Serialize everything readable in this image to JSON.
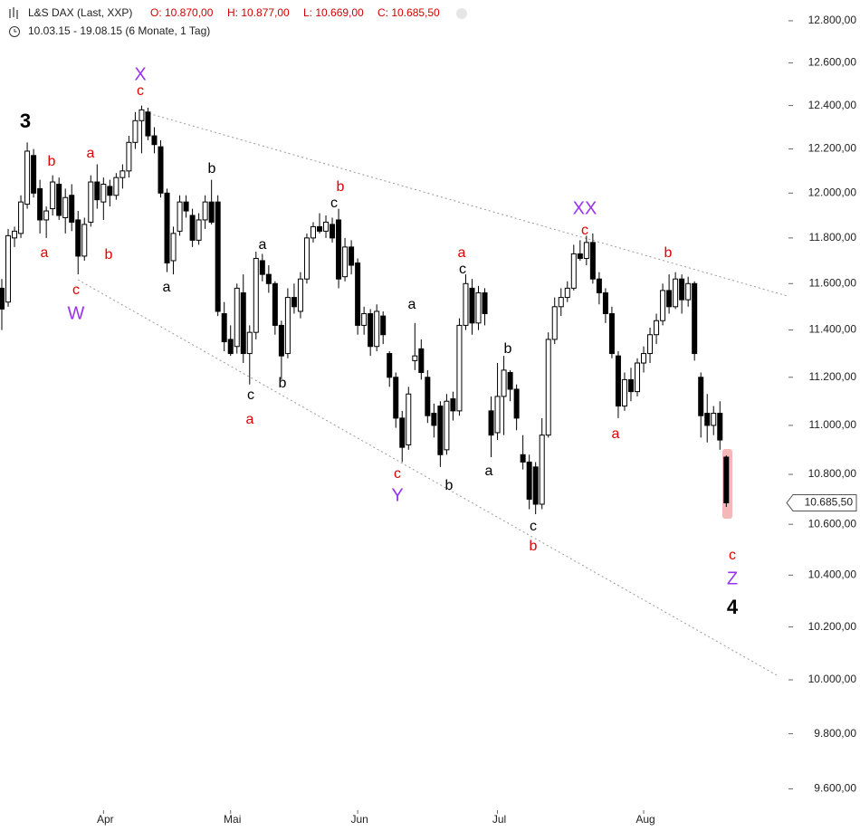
{
  "header": {
    "title": "L&S DAX (Last, XXP)",
    "ohlc": [
      "O: 10.870,00",
      "H: 10.877,00",
      "L: 10.669,00",
      "C: 10.685,50"
    ],
    "ohlc_color": "#d40000",
    "subtitle": "10.03.15 - 19.08.15 (6 Monate, 1 Tag)"
  },
  "chart_data": {
    "type": "candlestick",
    "log_scale": true,
    "ylim": [
      9530,
      12900
    ],
    "yticks": [
      {
        "value": 9600,
        "label": "9.600,00"
      },
      {
        "value": 9800,
        "label": "9.800,00"
      },
      {
        "value": 10000,
        "label": "10.000,00"
      },
      {
        "value": 10200,
        "label": "10.200,00"
      },
      {
        "value": 10400,
        "label": "10.400,00"
      },
      {
        "value": 10600,
        "label": "10.600,00"
      },
      {
        "value": 10800,
        "label": "10.800,00"
      },
      {
        "value": 11000,
        "label": "11.000,00"
      },
      {
        "value": 11200,
        "label": "11.200,00"
      },
      {
        "value": 11400,
        "label": "11.400,00"
      },
      {
        "value": 11600,
        "label": "11.600,00"
      },
      {
        "value": 11800,
        "label": "11.800,00"
      },
      {
        "value": 12000,
        "label": "12.000,00"
      },
      {
        "value": 12200,
        "label": "12.200,00"
      },
      {
        "value": 12400,
        "label": "12.400,00"
      },
      {
        "value": 12600,
        "label": "12.600,00"
      },
      {
        "value": 12800,
        "label": "12.800,00"
      }
    ],
    "categories": [
      null,
      null,
      null,
      null,
      null,
      null,
      null,
      null,
      null,
      null,
      null,
      null,
      null,
      null,
      null,
      null,
      "Apr",
      null,
      null,
      null,
      null,
      null,
      null,
      null,
      null,
      null,
      null,
      null,
      null,
      null,
      null,
      null,
      null,
      null,
      null,
      null,
      "Mai",
      null,
      null,
      null,
      null,
      null,
      null,
      null,
      null,
      null,
      null,
      null,
      null,
      null,
      null,
      null,
      null,
      null,
      null,
      null,
      "Jun",
      null,
      null,
      null,
      null,
      null,
      null,
      null,
      null,
      null,
      null,
      null,
      null,
      null,
      null,
      null,
      null,
      null,
      null,
      null,
      null,
      null,
      "Jul",
      null,
      null,
      null,
      null,
      null,
      null,
      null,
      null,
      null,
      null,
      null,
      null,
      null,
      null,
      null,
      null,
      null,
      null,
      null,
      null,
      null,
      null,
      "Aug",
      null,
      null,
      null,
      null,
      null,
      null,
      null,
      null,
      null,
      null,
      null,
      null,
      null
    ],
    "open": [
      11580,
      11520,
      11800,
      11820,
      11950,
      12170,
      12020,
      11880,
      11930,
      12040,
      11890,
      11990,
      11880,
      11720,
      11870,
      12050,
      11960,
      12030,
      11990,
      12070,
      12100,
      12230,
      12330,
      12370,
      12260,
      12210,
      12000,
      11700,
      11830,
      11960,
      11900,
      11790,
      11880,
      11960,
      11960,
      11470,
      11360,
      11330,
      11560,
      11300,
      11390,
      11700,
      11640,
      11600,
      11420,
      11300,
      11540,
      11480,
      11620,
      11800,
      11850,
      11830,
      11860,
      11880,
      11630,
      11760,
      11690,
      11420,
      11470,
      11330,
      11460,
      11300,
      11200,
      11030,
      10920,
      11270,
      11320,
      11200,
      11050,
      11080,
      10900,
      11110,
      11060,
      11420,
      11580,
      11430,
      11560,
      11060,
      10970,
      11120,
      11220,
      11150,
      10880,
      10850,
      10830,
      10680,
      10960,
      11360,
      11500,
      11540,
      11580,
      11730,
      11710,
      11780,
      11620,
      11560,
      11470,
      11290,
      11080,
      11190,
      11140,
      11260,
      11300,
      11380,
      11440,
      11570,
      11500,
      11620,
      11530,
      11600,
      11200,
      11050,
      11000,
      11050,
      10870
    ],
    "high": [
      11620,
      11840,
      11850,
      11990,
      12230,
      12200,
      12060,
      11940,
      12080,
      12070,
      12020,
      12040,
      11920,
      11890,
      12080,
      12130,
      12070,
      12060,
      12090,
      12130,
      12260,
      12370,
      12400,
      12390,
      12300,
      12240,
      12020,
      11850,
      11990,
      11990,
      11930,
      11910,
      11990,
      12060,
      11990,
      11520,
      11420,
      11600,
      11640,
      11420,
      11740,
      11730,
      11680,
      11610,
      11440,
      11580,
      11600,
      11650,
      11820,
      11870,
      11910,
      11900,
      11890,
      11930,
      11800,
      11790,
      11710,
      11500,
      11490,
      11510,
      11480,
      11310,
      11220,
      11060,
      11160,
      11430,
      11360,
      11230,
      11090,
      11100,
      11130,
      11140,
      11450,
      11640,
      11620,
      11590,
      11580,
      11120,
      11260,
      11290,
      11230,
      11170,
      10960,
      10880,
      10850,
      11030,
      11390,
      11540,
      11580,
      11610,
      11770,
      11790,
      11810,
      11820,
      11650,
      11580,
      11500,
      11310,
      11220,
      11240,
      11280,
      11330,
      11410,
      11470,
      11600,
      11640,
      11650,
      11640,
      11630,
      11610,
      11220,
      11130,
      11080,
      11100,
      10877
    ],
    "low": [
      11400,
      11500,
      11760,
      11800,
      11930,
      11980,
      11820,
      11800,
      11900,
      11880,
      11820,
      11830,
      11640,
      11700,
      11850,
      11930,
      11880,
      11940,
      11970,
      12020,
      12070,
      12200,
      12180,
      12240,
      12180,
      11980,
      11650,
      11640,
      11810,
      11890,
      11760,
      11770,
      11840,
      11860,
      11460,
      11310,
      11290,
      11300,
      11260,
      11170,
      11360,
      11610,
      11560,
      11380,
      11190,
      11280,
      11470,
      11450,
      11600,
      11780,
      11820,
      11800,
      11780,
      11580,
      11610,
      11640,
      11380,
      11380,
      11290,
      11310,
      11340,
      11160,
      10990,
      10850,
      10900,
      11230,
      11190,
      11010,
      10950,
      10830,
      10880,
      11020,
      11040,
      11400,
      11380,
      11400,
      11420,
      10870,
      10940,
      10960,
      11100,
      10980,
      10820,
      10660,
      10640,
      10660,
      10950,
      11340,
      11460,
      11520,
      11570,
      11700,
      11680,
      11600,
      11510,
      11430,
      11280,
      11030,
      11060,
      11100,
      11120,
      11220,
      11260,
      11340,
      11420,
      11470,
      11490,
      11470,
      11500,
      11270,
      10950,
      10930,
      10960,
      10900,
      10669
    ],
    "close": [
      11490,
      11810,
      11830,
      11960,
      12190,
      12000,
      11880,
      11920,
      12050,
      11900,
      11980,
      11870,
      11720,
      11860,
      12050,
      11970,
      12040,
      11990,
      12070,
      12100,
      12230,
      12330,
      12380,
      12260,
      12220,
      12000,
      11690,
      11820,
      11960,
      11920,
      11790,
      11880,
      11960,
      11870,
      11480,
      11350,
      11300,
      11580,
      11300,
      11390,
      11710,
      11640,
      11600,
      11420,
      11290,
      11540,
      11500,
      11620,
      11800,
      11850,
      11830,
      11870,
      11800,
      11620,
      11760,
      11680,
      11420,
      11470,
      11330,
      11480,
      11380,
      11200,
      11030,
      10910,
      11130,
      11290,
      11220,
      11040,
      11000,
      10880,
      11100,
      11060,
      11420,
      11600,
      11430,
      11560,
      11470,
      10960,
      11120,
      11230,
      11150,
      11030,
      10850,
      10700,
      10680,
      10960,
      11360,
      11500,
      11540,
      11580,
      11730,
      11710,
      11780,
      11620,
      11560,
      11470,
      11300,
      11080,
      11190,
      11140,
      11260,
      11300,
      11380,
      11440,
      11570,
      11500,
      11620,
      11530,
      11600,
      11300,
      11040,
      11000,
      11050,
      10940,
      10685.5
    ],
    "up_color": "#ffffff",
    "down_color": "#000000",
    "last_price_label": "10.685,50",
    "annotations": [
      {
        "text": "3",
        "color": "#000000"
      },
      {
        "text": "b",
        "color": "#e00000"
      },
      {
        "text": "a",
        "color": "#e00000"
      },
      {
        "text": "a",
        "color": "#e00000"
      },
      {
        "text": "b",
        "color": "#e00000"
      },
      {
        "text": "c",
        "color": "#e00000"
      },
      {
        "text": "W",
        "color": "#9933ee"
      },
      {
        "text": "X",
        "color": "#9933ee"
      },
      {
        "text": "c",
        "color": "#e00000"
      },
      {
        "text": "b",
        "color": "#000000"
      },
      {
        "text": "a",
        "color": "#000000"
      },
      {
        "text": "b",
        "color": "#e00000"
      },
      {
        "text": "c",
        "color": "#000000"
      },
      {
        "text": "a",
        "color": "#000000"
      },
      {
        "text": "c",
        "color": "#000000"
      },
      {
        "text": "a",
        "color": "#e00000"
      },
      {
        "text": "b",
        "color": "#000000"
      },
      {
        "text": "a",
        "color": "#000000"
      },
      {
        "text": "c",
        "color": "#e00000"
      },
      {
        "text": "Y",
        "color": "#9933ee"
      },
      {
        "text": "b",
        "color": "#000000"
      },
      {
        "text": "a",
        "color": "#e00000"
      },
      {
        "text": "c",
        "color": "#000000"
      },
      {
        "text": "b",
        "color": "#000000"
      },
      {
        "text": "a",
        "color": "#000000"
      },
      {
        "text": "c",
        "color": "#000000"
      },
      {
        "text": "b",
        "color": "#e00000"
      },
      {
        "text": "XX",
        "color": "#9933ee"
      },
      {
        "text": "c",
        "color": "#e00000"
      },
      {
        "text": "a",
        "color": "#e00000"
      },
      {
        "text": "b",
        "color": "#e00000"
      },
      {
        "text": "c",
        "color": "#e00000"
      },
      {
        "text": "Z",
        "color": "#9933ee"
      },
      {
        "text": "4",
        "color": "#000000"
      }
    ]
  }
}
